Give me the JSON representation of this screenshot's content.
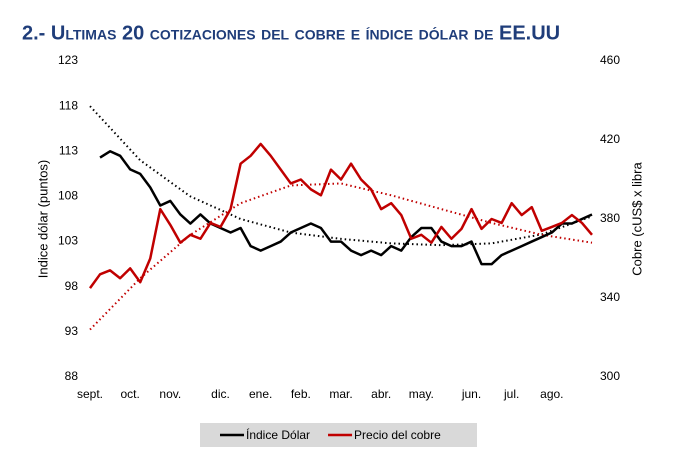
{
  "chart_data": {
    "type": "line",
    "title": "2.- Ultimas 20 cotizaciones del cobre e índice dólar de EE.UU",
    "y_label": "Indice dólar (puntos)",
    "y2_label": "Cobre (cUS$ x libra",
    "categories": [
      "sept.",
      null,
      null,
      null,
      "oct.",
      null,
      null,
      null,
      "nov.",
      null,
      null,
      null,
      null,
      "dic.",
      null,
      null,
      null,
      "ene.",
      null,
      null,
      null,
      "feb.",
      null,
      null,
      null,
      "mar.",
      null,
      null,
      null,
      "abr.",
      null,
      null,
      null,
      "may.",
      null,
      null,
      null,
      null,
      "jun.",
      null,
      null,
      null,
      "jul.",
      null,
      null,
      null,
      "ago.",
      null,
      null,
      null,
      null
    ],
    "ylim": [
      88,
      123
    ],
    "yticks": [
      88,
      93,
      98,
      103,
      108,
      113,
      118,
      123
    ],
    "y2lim": [
      300,
      460
    ],
    "y2ticks": [
      300,
      340,
      380,
      420,
      460
    ],
    "series": [
      {
        "name": "Índice Dólar",
        "color": "#000000",
        "axis": "y",
        "values": [
          null,
          112.3,
          113,
          112.5,
          111,
          110.5,
          109,
          107,
          107.5,
          106,
          105,
          106,
          105,
          104.5,
          104,
          104.5,
          102.5,
          102,
          102.5,
          103,
          104,
          104.5,
          105,
          104.5,
          103,
          103,
          102,
          101.5,
          102,
          101.5,
          102.5,
          102,
          103.5,
          104.5,
          104.5,
          103,
          102.5,
          102.5,
          103,
          100.5,
          100.5,
          101.5,
          102,
          102.5,
          103,
          103.5,
          104,
          105,
          105,
          105.5,
          106
        ]
      },
      {
        "name": "Precio del cobre",
        "color": "#c00000",
        "axis": "y2",
        "values": [
          345,
          352,
          354,
          350,
          355,
          348,
          360,
          385,
          377,
          368,
          372,
          370,
          378,
          376,
          385,
          408,
          412,
          418,
          412,
          405,
          398,
          400,
          395,
          392,
          405,
          400,
          408,
          400,
          395,
          385,
          388,
          382,
          370,
          372,
          368,
          376,
          370,
          375,
          385,
          375,
          380,
          378,
          388,
          382,
          386,
          374,
          376,
          378,
          382,
          378,
          372
        ]
      }
    ],
    "trendlines": [
      {
        "color": "#000000",
        "axis": "y",
        "x": [
          0,
          5,
          10,
          15,
          20,
          25,
          30,
          35,
          40,
          45,
          50
        ],
        "values": [
          118,
          112,
          108,
          105.5,
          104,
          103.3,
          102.8,
          102.6,
          102.8,
          103.8,
          105.8
        ]
      },
      {
        "color": "#c00000",
        "axis": "y2",
        "x": [
          0,
          5,
          10,
          15,
          20,
          25,
          30,
          35,
          40,
          45,
          50
        ],
        "values": [
          324,
          350,
          372,
          388,
          397,
          398,
          392,
          385,
          378,
          372,
          368
        ]
      }
    ]
  }
}
